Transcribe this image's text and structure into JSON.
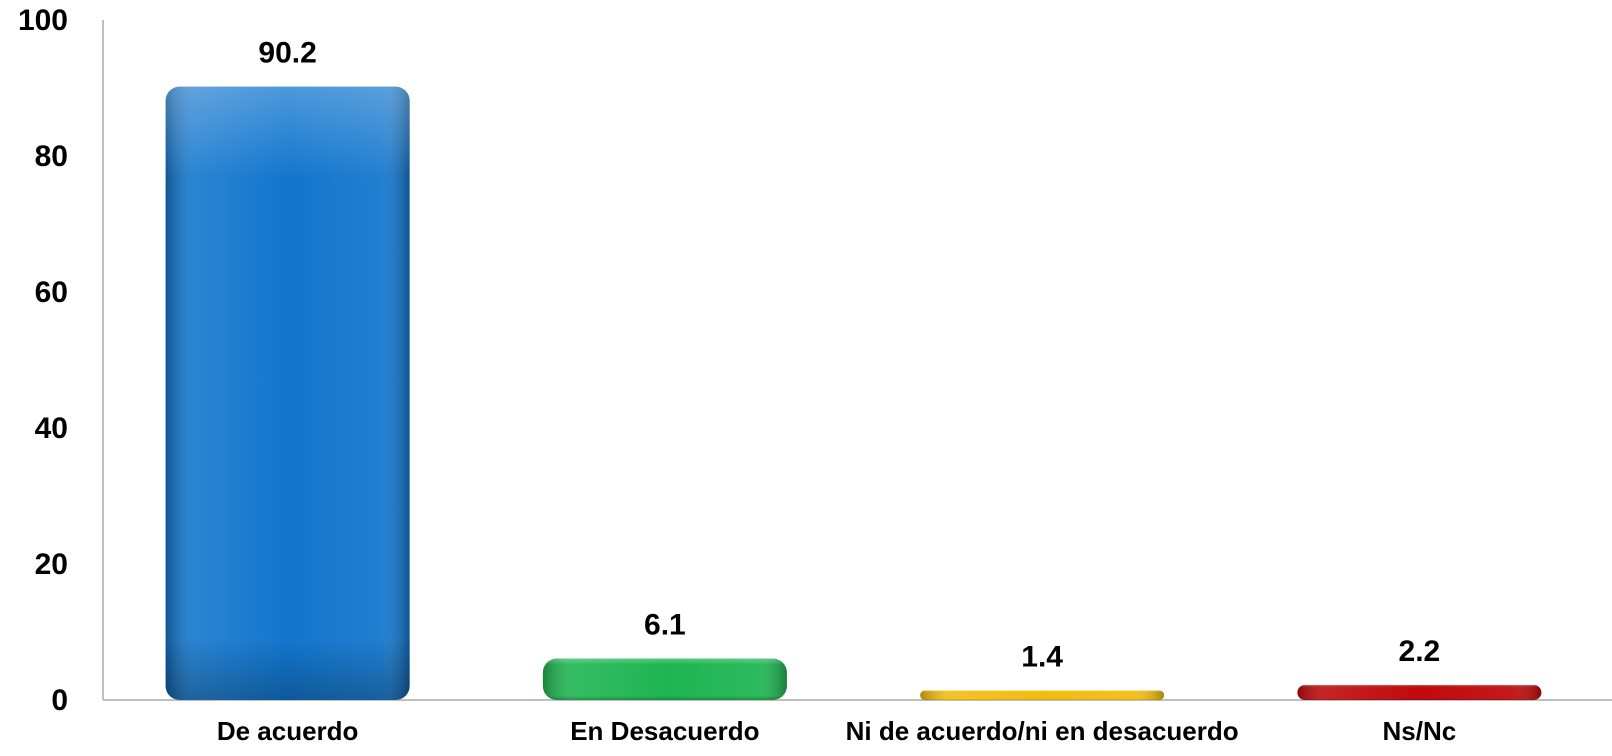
{
  "chart_data": {
    "type": "bar",
    "categories": [
      "De acuerdo",
      "En Desacuerdo",
      "Ni de acuerdo/ni en desacuerdo",
      "Ns/Nc"
    ],
    "values": [
      90.2,
      6.1,
      1.4,
      2.2
    ],
    "value_labels": [
      "90.2",
      "6.1",
      "1.4",
      "2.2"
    ],
    "ylim": [
      0,
      100
    ],
    "yticks": [
      0,
      20,
      40,
      60,
      80,
      100
    ],
    "colors": [
      "#1276CE",
      "#1FB552",
      "#F2BC0F",
      "#C00A0C"
    ],
    "title": "",
    "xlabel": "",
    "ylabel": "",
    "grid": false,
    "legend": "none"
  }
}
